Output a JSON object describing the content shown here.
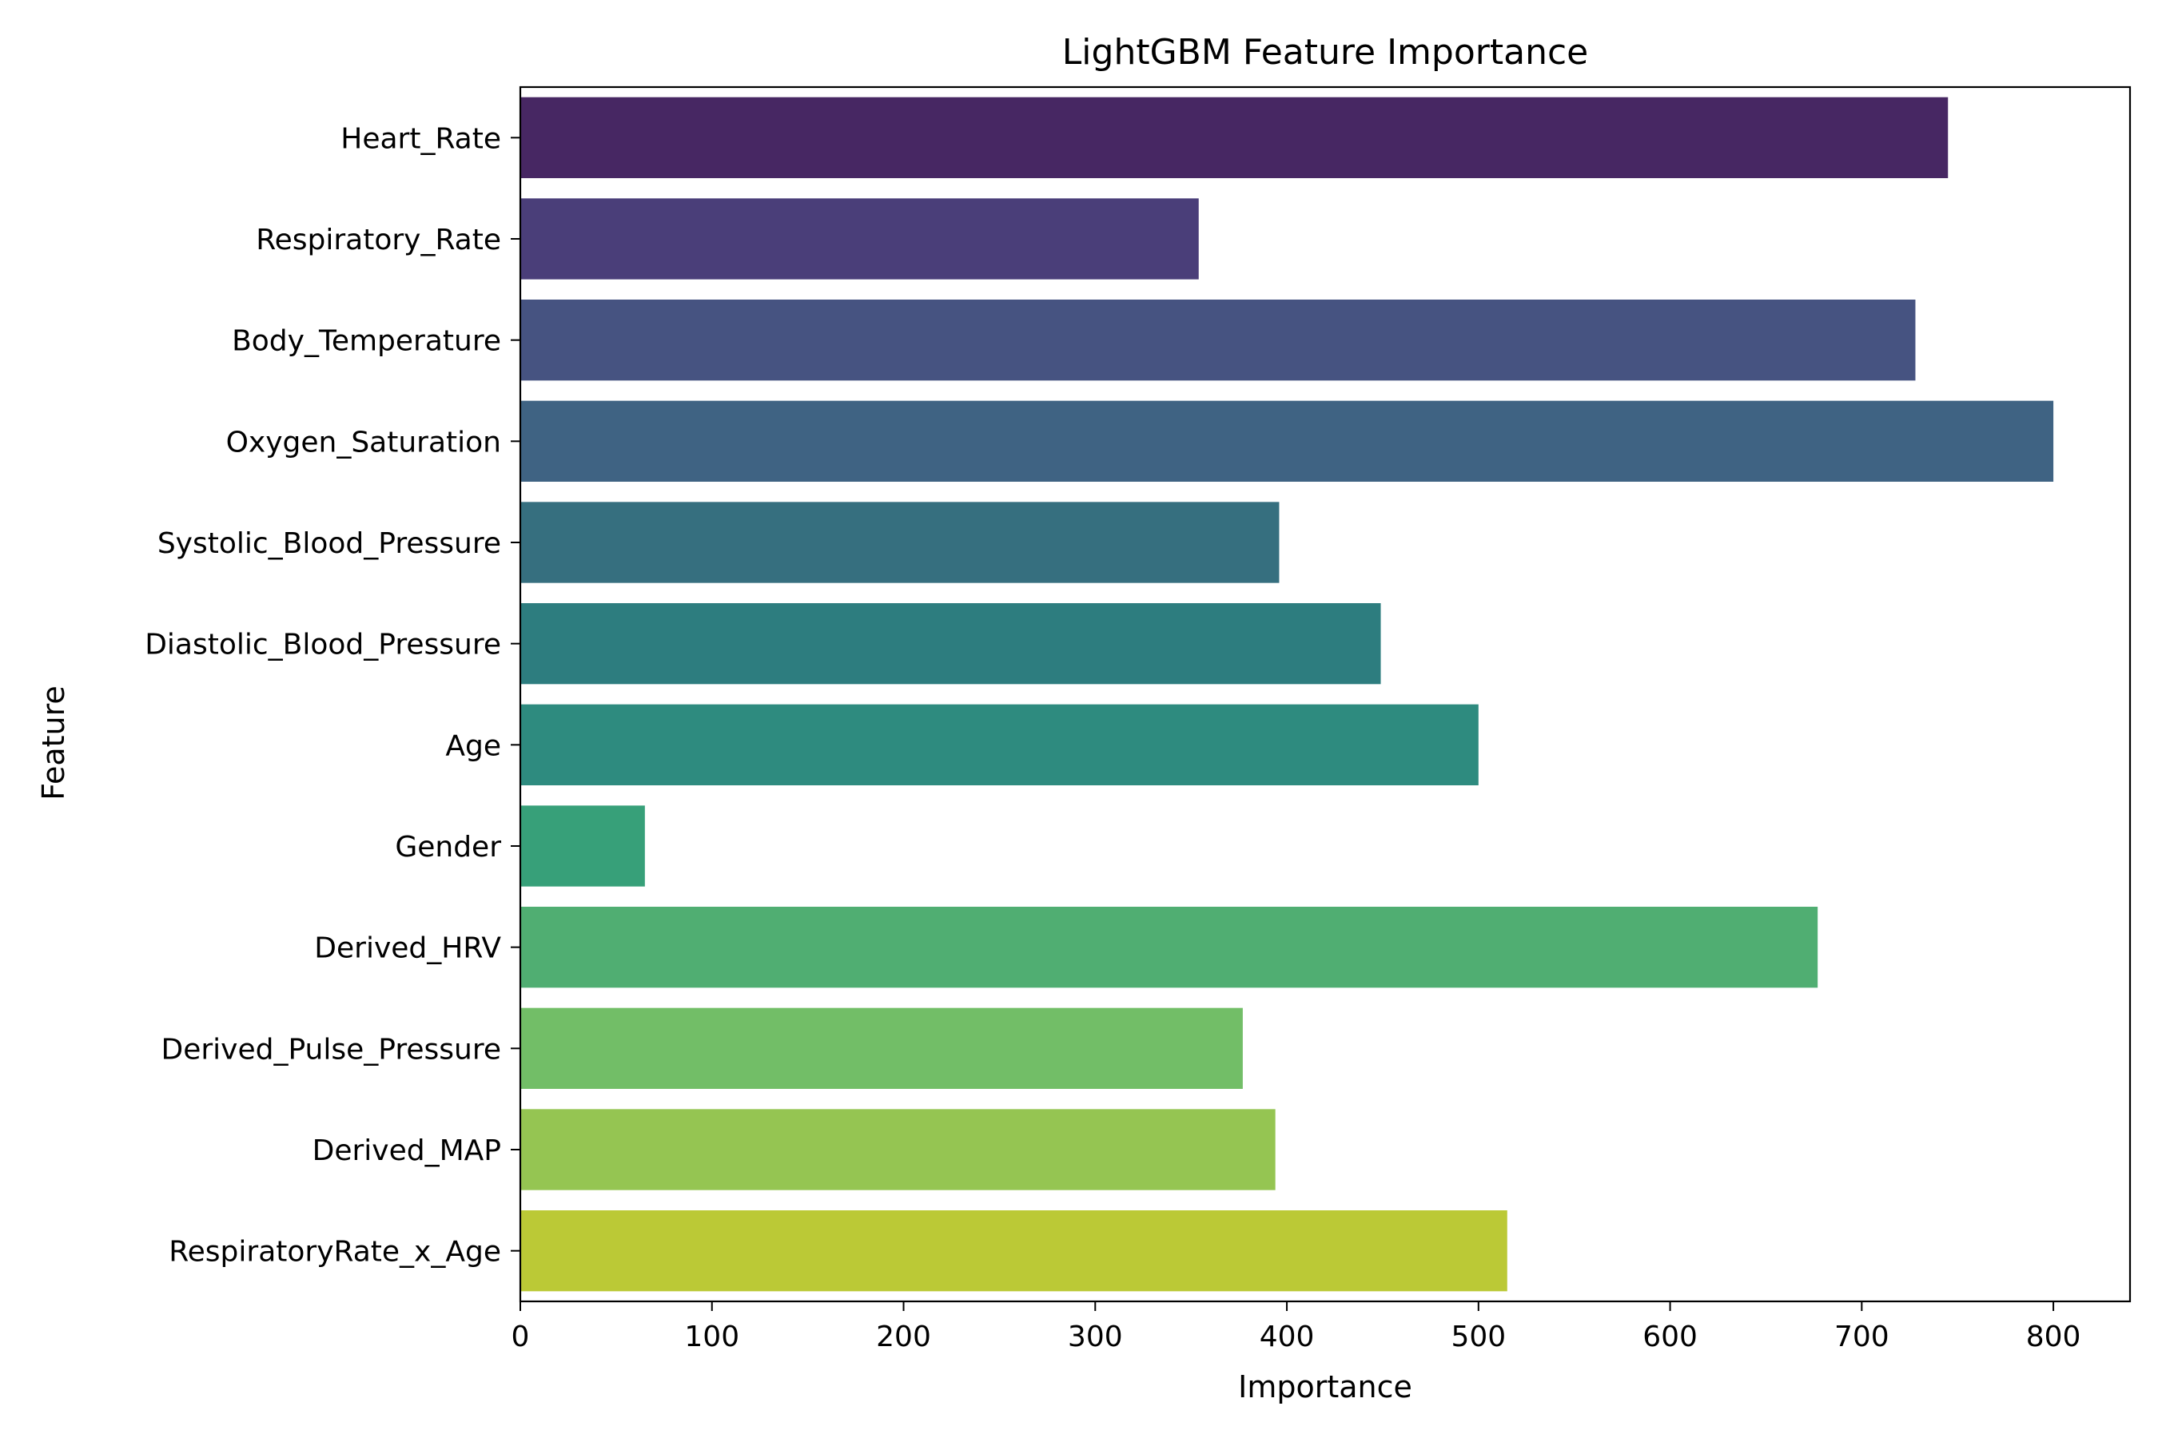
{
  "chart_data": {
    "type": "bar",
    "orientation": "horizontal",
    "title": "LightGBM Feature Importance",
    "xlabel": "Importance",
    "ylabel": "Feature",
    "categories": [
      "Heart_Rate",
      "Respiratory_Rate",
      "Body_Temperature",
      "Oxygen_Saturation",
      "Systolic_Blood_Pressure",
      "Diastolic_Blood_Pressure",
      "Age",
      "Gender",
      "Derived_HRV",
      "Derived_Pulse_Pressure",
      "Derived_MAP",
      "RespiratoryRate_x_Age"
    ],
    "values": [
      745,
      354,
      728,
      800,
      396,
      449,
      500,
      65,
      677,
      377,
      394,
      515
    ],
    "colors": [
      "#472763",
      "#4a3e79",
      "#465381",
      "#3f6383",
      "#366f7f",
      "#2d7d7f",
      "#2e8b7f",
      "#37a079",
      "#50ae72",
      "#72be67",
      "#95c552",
      "#bbc936"
    ],
    "xlim": [
      0,
      840
    ],
    "xticks": [
      0,
      100,
      200,
      300,
      400,
      500,
      600,
      700,
      800
    ],
    "grid": false,
    "legend": "none"
  }
}
